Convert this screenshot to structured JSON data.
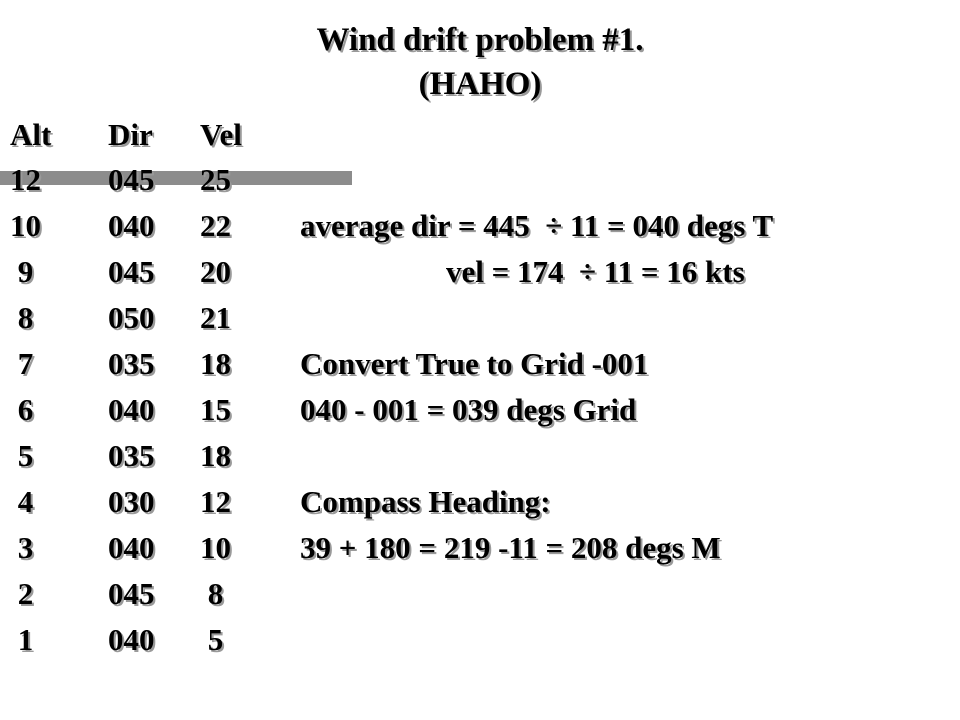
{
  "title": {
    "line1": "Wind drift problem #1.",
    "line2": "(HAHO)"
  },
  "table": {
    "headers": [
      "Alt",
      "Dir",
      "Vel"
    ],
    "rows": [
      [
        "12",
        "045",
        "25"
      ],
      [
        "10",
        "040",
        "22"
      ],
      [
        " 9",
        "045",
        "20"
      ],
      [
        " 8",
        "050",
        "21"
      ],
      [
        " 7",
        "035",
        "18"
      ],
      [
        " 6",
        "040",
        "15"
      ],
      [
        " 5",
        "035",
        "18"
      ],
      [
        " 4",
        "030",
        "12"
      ],
      [
        " 3",
        "040",
        "10"
      ],
      [
        " 2",
        "045",
        " 8"
      ],
      [
        " 1",
        "040",
        " 5"
      ]
    ]
  },
  "notes": {
    "average_dir": "average dir = 445  ÷ 11 = 040 degs T",
    "average_vel": "vel = 174  ÷ 11 = 16 kts",
    "convert_heading": "Convert True to Grid -001",
    "convert_calc": "040 - 001 = 039 degs Grid",
    "compass_heading": "Compass Heading:",
    "compass_calc": "39 + 180 = 219 -11 = 208 degs M"
  },
  "colors": {
    "text": "#000000",
    "shadow": "#9a9a9a",
    "bar": "#8c8c8c",
    "background": "#ffffff"
  }
}
